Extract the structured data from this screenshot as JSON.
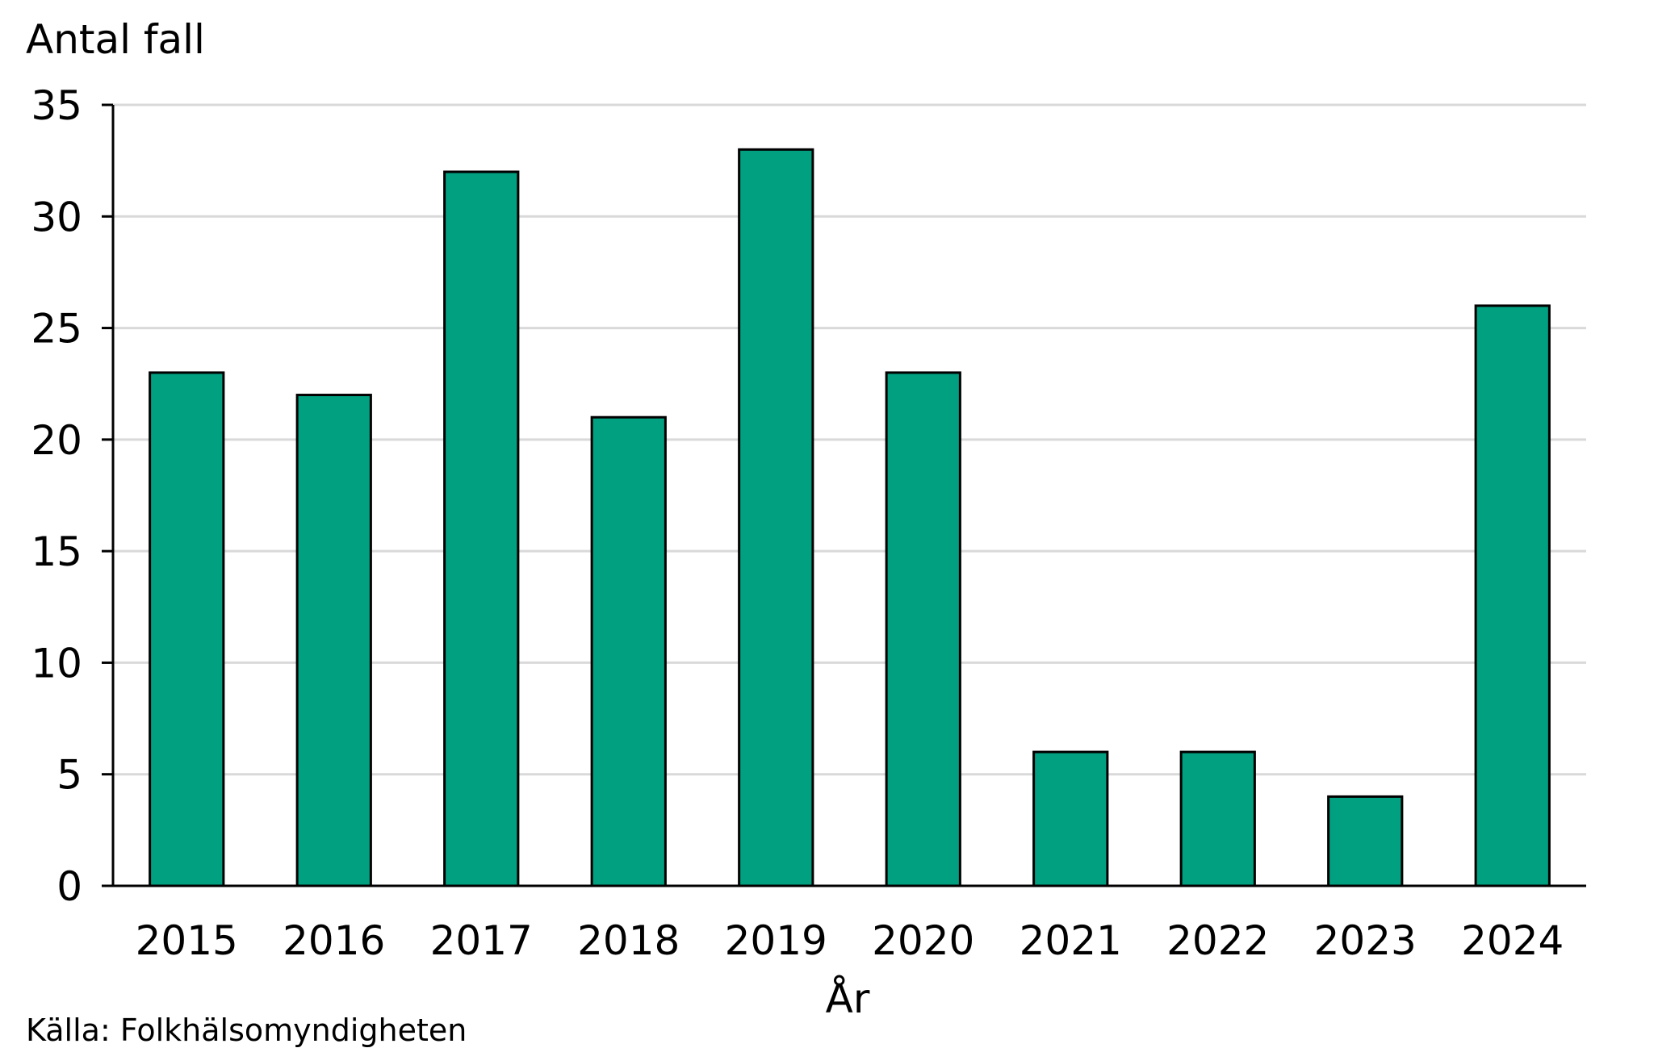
{
  "chart_data": {
    "type": "bar",
    "ylabel": "Antal fall",
    "xlabel": "År",
    "source": "Källa: Folkhälsomyndigheten",
    "categories": [
      "2015",
      "2016",
      "2017",
      "2018",
      "2019",
      "2020",
      "2021",
      "2022",
      "2023",
      "2024"
    ],
    "values": [
      23,
      22,
      32,
      21,
      33,
      23,
      6,
      6,
      4,
      26
    ],
    "ylim": [
      0,
      35
    ],
    "yticks": [
      0,
      5,
      10,
      15,
      20,
      25,
      30,
      35
    ],
    "grid": true,
    "bar_color": "#00a080"
  }
}
